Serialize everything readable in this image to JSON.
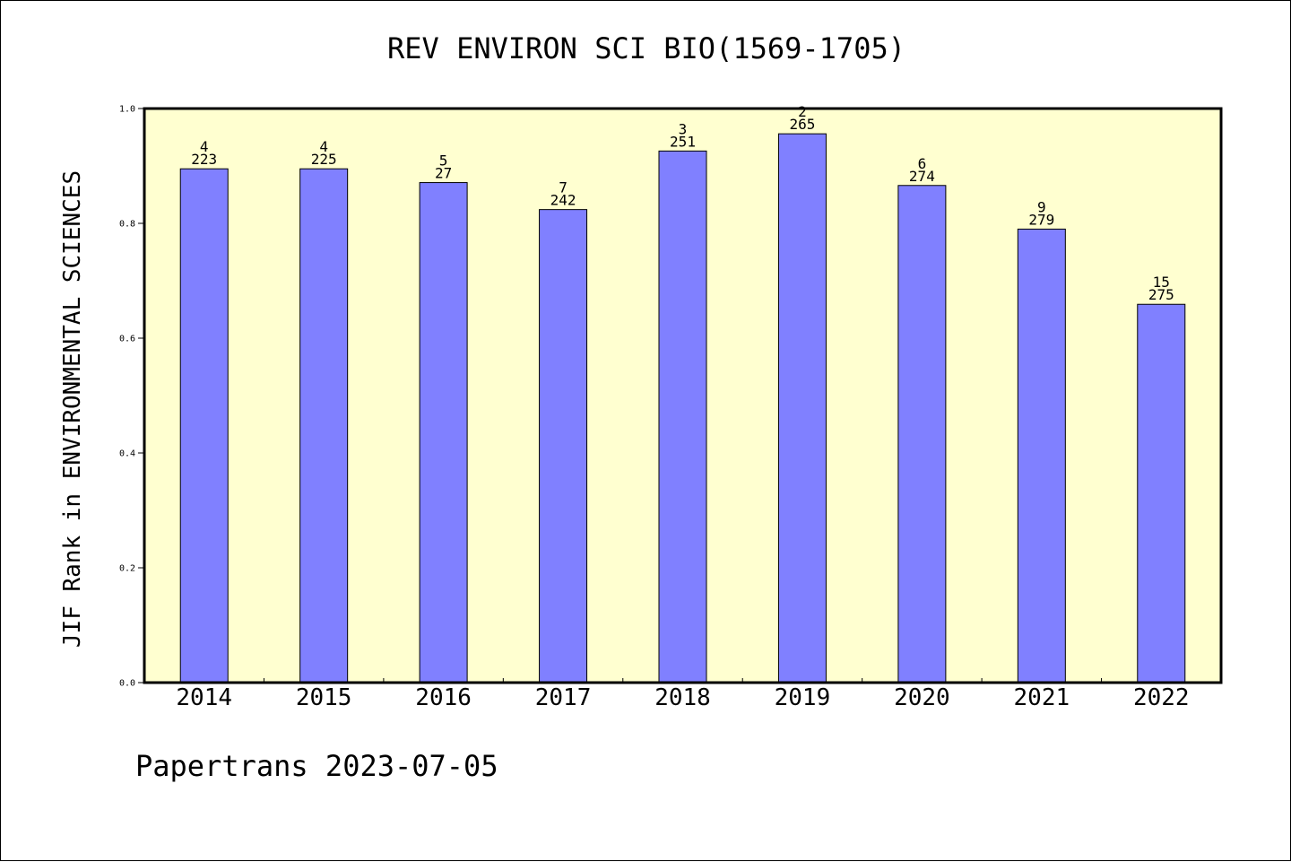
{
  "chart_data": {
    "type": "bar",
    "title": "REV ENVIRON SCI BIO(1569-1705)",
    "ylabel": "JIF Rank in ENVIRONMENTAL SCIENCES",
    "xlabel": "",
    "categories": [
      "2014",
      "2015",
      "2016",
      "2017",
      "2018",
      "2019",
      "2020",
      "2021",
      "2022"
    ],
    "values": [
      0.895,
      0.895,
      0.871,
      0.824,
      0.926,
      0.956,
      0.866,
      0.79,
      0.659
    ],
    "rank_labels": [
      "4",
      "4",
      "5",
      "7",
      "3",
      "2",
      "6",
      "9",
      "15"
    ],
    "total_labels": [
      "223",
      "225",
      "27",
      "242",
      "251",
      "265",
      "274",
      "279",
      "275"
    ],
    "ylim": [
      0,
      1.0
    ],
    "yticks": [
      "0.0",
      "0.2",
      "0.4",
      "0.6",
      "0.8",
      "1.0"
    ],
    "grid": false,
    "plot_background": "#ffffd0",
    "bar_color": "#8080ff"
  },
  "footer": "Papertrans 2023-07-05"
}
